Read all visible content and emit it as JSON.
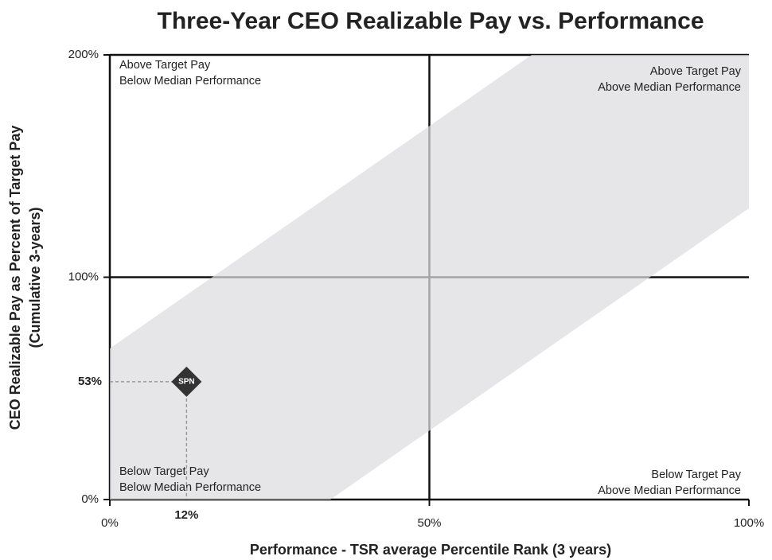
{
  "chart_data": {
    "type": "scatter",
    "title": "Three-Year CEO Realizable Pay vs. Performance",
    "y_label": [
      "CEO Realizable Pay as Percent of Target Pay",
      "(Cumulative  3-years)"
    ],
    "x_label": "Performance - TSR average Percentile Rank (3 years)",
    "xlim": [
      0,
      100
    ],
    "ylim": [
      0,
      200
    ],
    "xticks": [
      {
        "value": 0,
        "label": "0%"
      },
      {
        "value": 50,
        "label": "50%"
      },
      {
        "value": 100,
        "label": "100%"
      }
    ],
    "yticks": [
      {
        "value": 0,
        "label": "0%"
      },
      {
        "value": 100,
        "label": "100%"
      },
      {
        "value": 200,
        "label": "200%"
      }
    ],
    "grid": true,
    "band": {
      "color": "#dcdde0",
      "x": [
        0,
        66,
        100,
        100,
        34.5,
        0
      ],
      "y": [
        68,
        200,
        200,
        131,
        0,
        0
      ]
    },
    "series": [
      {
        "name": "SPN",
        "color": "#333333",
        "x": [
          12
        ],
        "values": [
          53
        ],
        "x_labels": [
          "12%"
        ],
        "value_labels": [
          "53%"
        ]
      }
    ],
    "annotations": [
      {
        "lines": [
          "Above Target Pay",
          "Below Median Performance"
        ],
        "corner": "top-left"
      },
      {
        "lines": [
          "Above Target Pay",
          "Above Median Performance"
        ],
        "corner": "top-right"
      },
      {
        "lines": [
          "Below Target Pay",
          "Below Median Performance"
        ],
        "corner": "bottom-left"
      },
      {
        "lines": [
          "Below Target Pay",
          "Above Median Performance"
        ],
        "corner": "bottom-right"
      }
    ]
  }
}
